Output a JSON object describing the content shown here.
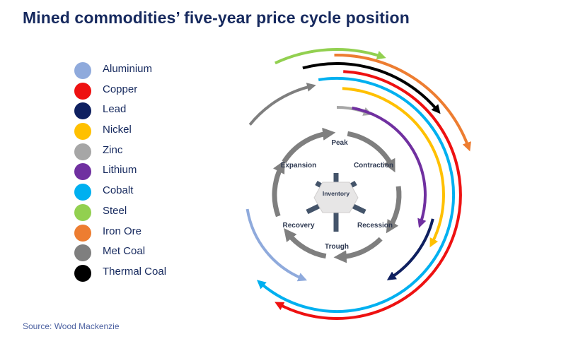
{
  "title": "Mined commodities’ five-year price cycle position",
  "source": "Source: Wood Mackenzie",
  "legend": [
    {
      "label": "Aluminium",
      "color": "#8faadc"
    },
    {
      "label": "Copper",
      "color": "#ee1111"
    },
    {
      "label": "Lead",
      "color": "#0f2060"
    },
    {
      "label": "Nickel",
      "color": "#ffc000"
    },
    {
      "label": "Zinc",
      "color": "#a6a6a6"
    },
    {
      "label": "Lithium",
      "color": "#7030a0"
    },
    {
      "label": "Cobalt",
      "color": "#00b0f0"
    },
    {
      "label": "Steel",
      "color": "#92d050"
    },
    {
      "label": "Iron Ore",
      "color": "#ed7d31"
    },
    {
      "label": "Met Coal",
      "color": "#7f7f7f"
    },
    {
      "label": "Thermal Coal",
      "color": "#000000"
    }
  ],
  "cycle": {
    "stages": {
      "peak": "Peak",
      "contraction": "Contraction",
      "recession": "Recession",
      "trough": "Trough",
      "recovery": "Recovery",
      "expansion": "Expansion"
    },
    "hub": "Inventory",
    "ring_color": "#7f7f7f",
    "hub_color": "#e7e6e6",
    "spoke_color": "#44546a"
  }
}
